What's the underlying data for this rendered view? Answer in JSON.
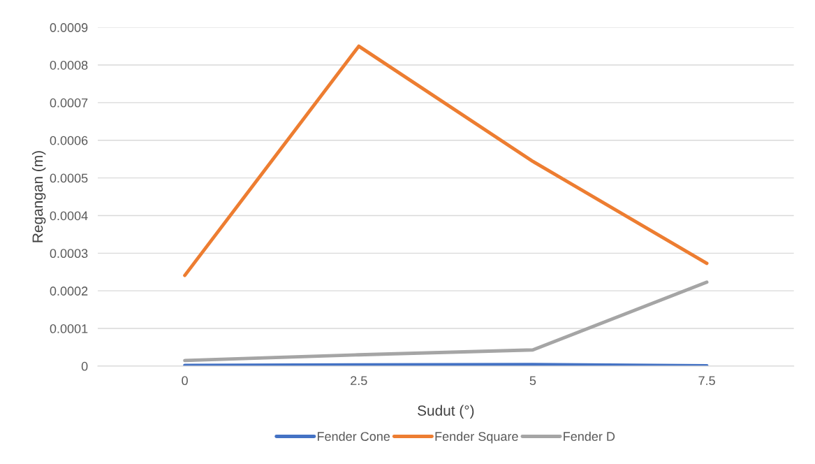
{
  "chart_data": {
    "type": "line",
    "xlabel": "Sudut (°)",
    "ylabel": "Regangan (m)",
    "categories": [
      "0",
      "2.5",
      "5",
      "7.5"
    ],
    "series": [
      {
        "name": "Fender Cone",
        "color": "#4472c4",
        "values": [
          2e-06,
          3e-06,
          4e-06,
          1e-06
        ]
      },
      {
        "name": "Fender Square",
        "color": "#ed7d31",
        "values": [
          0.000241,
          0.00085,
          0.000544,
          0.000273
        ]
      },
      {
        "name": "Fender D",
        "color": "#a5a5a5",
        "values": [
          1.5e-05,
          3e-05,
          4.3e-05,
          0.000223
        ]
      }
    ],
    "ylim": [
      0,
      0.0009
    ],
    "yticks": [
      0,
      0.0001,
      0.0002,
      0.0003,
      0.0004,
      0.0005,
      0.0006,
      0.0007,
      0.0008,
      0.0009
    ],
    "grid": "y",
    "legend": "bottom",
    "marker": "none",
    "line_style": "solid"
  }
}
